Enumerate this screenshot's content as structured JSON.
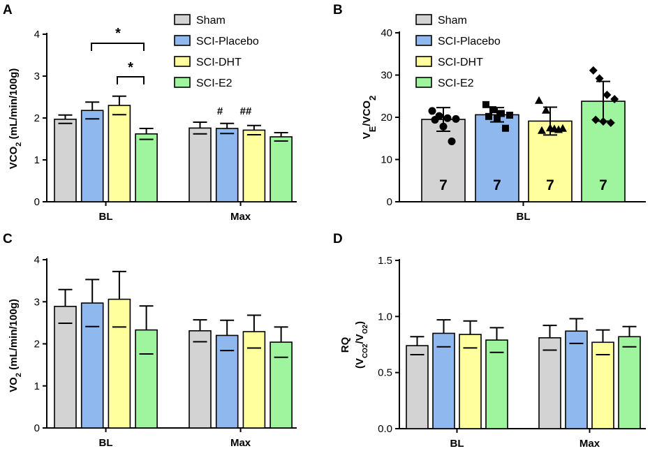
{
  "colors": {
    "Sham": "#d3d3d3",
    "SCI-Placebo": "#8fb8ef",
    "SCI-DHT": "#ffff9e",
    "SCI-E2": "#9ef59e"
  },
  "legend": [
    "Sham",
    "SCI-Placebo",
    "SCI-DHT",
    "SCI-E2"
  ],
  "chart_data": [
    {
      "panel": "A",
      "type": "bar",
      "ylabel_main": "VCO",
      "ylabel_sub": "2",
      "ylabel_rest": " (mL/min/100g)",
      "ylim": [
        0,
        4
      ],
      "yticks": [
        "0",
        "1",
        "2",
        "3",
        "4"
      ],
      "categories": [
        "BL",
        "Max"
      ],
      "series": [
        {
          "name": "Sham",
          "values": [
            1.97,
            1.76
          ],
          "errors": [
            0.1,
            0.14
          ]
        },
        {
          "name": "SCI-Placebo",
          "values": [
            2.18,
            1.75
          ],
          "errors": [
            0.2,
            0.12
          ]
        },
        {
          "name": "SCI-DHT",
          "values": [
            2.3,
            1.71
          ],
          "errors": [
            0.22,
            0.11
          ]
        },
        {
          "name": "SCI-E2",
          "values": [
            1.62,
            1.55
          ],
          "errors": [
            0.13,
            0.1
          ]
        }
      ],
      "annotations": {
        "sig_star_1": "*",
        "sig_star_2": "*",
        "hash_placebo": "#",
        "hash_dht": "##"
      }
    },
    {
      "panel": "B",
      "type": "bar",
      "ylabel_main": "V",
      "ylabel_sub1": "E",
      "ylabel_mid": "/VCO",
      "ylabel_sub2": "2",
      "ylim": [
        0,
        40
      ],
      "yticks": [
        "0",
        "10",
        "20",
        "30",
        "40"
      ],
      "categories": [
        "BL"
      ],
      "series": [
        {
          "name": "Sham",
          "value": 19.5,
          "error": 2.8,
          "n": "7",
          "points": [
            21.5,
            20.3,
            19.8,
            19.6,
            19.4,
            17.8,
            14.3
          ]
        },
        {
          "name": "SCI-Placebo",
          "value": 20.6,
          "error": 1.7,
          "n": "7",
          "points": [
            23.0,
            21.8,
            20.9,
            20.5,
            20.2,
            19.8,
            17.4
          ]
        },
        {
          "name": "SCI-DHT",
          "value": 19.1,
          "error": 3.3,
          "n": "7",
          "points": [
            24.0,
            21.7,
            17.3,
            17.4,
            16.9,
            17.5,
            17.1
          ]
        },
        {
          "name": "SCI-E2",
          "value": 23.8,
          "error": 4.7,
          "n": "7",
          "points": [
            31.1,
            29.2,
            25.3,
            24.3,
            19.4,
            19.0,
            18.7
          ]
        }
      ]
    },
    {
      "panel": "C",
      "type": "bar",
      "ylabel_main": "VO",
      "ylabel_sub": "2",
      "ylabel_rest": " (mL/min/100g)",
      "ylim": [
        0,
        4
      ],
      "yticks": [
        "0",
        "1",
        "2",
        "3",
        "4"
      ],
      "categories": [
        "BL",
        "Max"
      ],
      "series": [
        {
          "name": "Sham",
          "values": [
            2.89,
            2.31
          ],
          "errors": [
            0.4,
            0.26
          ]
        },
        {
          "name": "SCI-Placebo",
          "values": [
            2.97,
            2.2
          ],
          "errors": [
            0.56,
            0.36
          ]
        },
        {
          "name": "SCI-DHT",
          "values": [
            3.06,
            2.29
          ],
          "errors": [
            0.66,
            0.39
          ]
        },
        {
          "name": "SCI-E2",
          "values": [
            2.33,
            2.04
          ],
          "errors": [
            0.57,
            0.36
          ]
        }
      ]
    },
    {
      "panel": "D",
      "type": "bar",
      "ylabel_top": "RQ",
      "ylabel_open": "(V",
      "ylabel_sub1": "CO2",
      "ylabel_slash": "/V",
      "ylabel_sub2": "O2",
      "ylabel_close": ")",
      "ylim": [
        0,
        1.5
      ],
      "yticks": [
        "0.0",
        "0.5",
        "1.0",
        "1.5"
      ],
      "categories": [
        "BL",
        "Max"
      ],
      "series": [
        {
          "name": "Sham",
          "values": [
            0.74,
            0.81
          ],
          "errors": [
            0.08,
            0.11
          ]
        },
        {
          "name": "SCI-Placebo",
          "values": [
            0.85,
            0.87
          ],
          "errors": [
            0.12,
            0.11
          ]
        },
        {
          "name": "SCI-DHT",
          "values": [
            0.84,
            0.77
          ],
          "errors": [
            0.12,
            0.11
          ]
        },
        {
          "name": "SCI-E2",
          "values": [
            0.79,
            0.82
          ],
          "errors": [
            0.11,
            0.09
          ]
        }
      ]
    }
  ]
}
